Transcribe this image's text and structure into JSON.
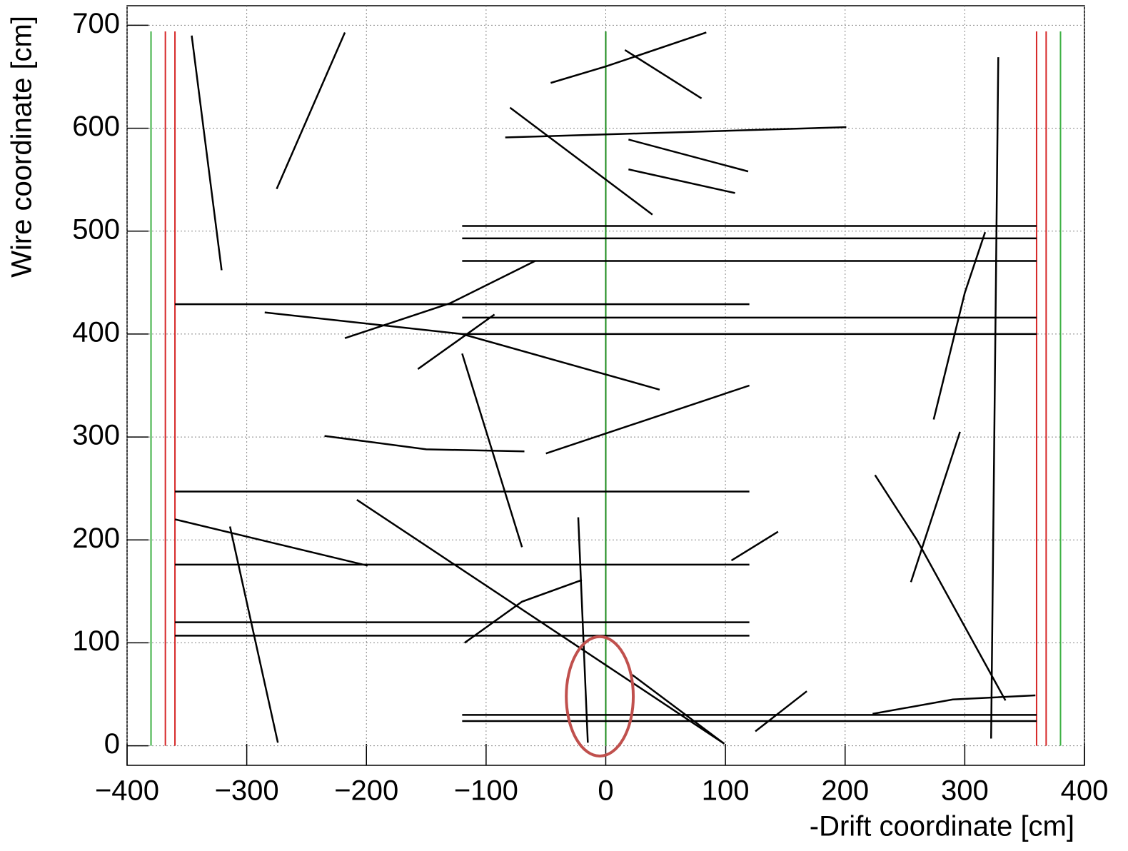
{
  "chart_data": {
    "type": "line",
    "xlabel": "-Drift coordinate [cm]",
    "ylabel": "Wire coordinate [cm]",
    "xlim": [
      -400,
      400
    ],
    "ylim": [
      -19,
      719
    ],
    "xticks": [
      {
        "value": -400,
        "label": "−400"
      },
      {
        "value": -300,
        "label": "−300"
      },
      {
        "value": -200,
        "label": "−200"
      },
      {
        "value": -100,
        "label": "−100"
      },
      0,
      100,
      200,
      300,
      400
    ],
    "yticks": [
      0,
      100,
      200,
      300,
      400,
      500,
      600,
      700
    ],
    "grid": true,
    "color": "#000000",
    "tracks": [
      {
        "x": [
          -346,
          -321
        ],
        "y": [
          690,
          462
        ]
      },
      {
        "x": [
          -275,
          -218
        ],
        "y": [
          541,
          693
        ]
      },
      {
        "x": [
          -360,
          -199
        ],
        "y": [
          220,
          175
        ]
      },
      {
        "x": [
          -314,
          -274
        ],
        "y": [
          213,
          3
        ]
      },
      {
        "x": [
          -208,
          99
        ],
        "y": [
          239,
          2
        ]
      },
      {
        "x": [
          -120,
          -70
        ],
        "y": [
          381,
          193
        ]
      },
      {
        "x": [
          -23,
          -15
        ],
        "y": [
          222,
          3
        ]
      },
      {
        "x": [
          -118,
          -70,
          -20
        ],
        "y": [
          100,
          140,
          161
        ]
      },
      {
        "x": [
          255,
          296
        ],
        "y": [
          159,
          305
        ]
      },
      {
        "x": [
          225,
          260,
          334
        ],
        "y": [
          263,
          200,
          44
        ]
      },
      {
        "x": [
          328,
          322
        ],
        "y": [
          669,
          7
        ]
      },
      {
        "x": [
          274,
          300,
          317
        ],
        "y": [
          317,
          440,
          499
        ]
      },
      {
        "x": [
          -80,
          39
        ],
        "y": [
          620,
          516
        ]
      },
      {
        "x": [
          -84,
          201
        ],
        "y": [
          591,
          601
        ]
      },
      {
        "x": [
          19,
          119
        ],
        "y": [
          589,
          558
        ]
      },
      {
        "x": [
          19,
          108
        ],
        "y": [
          560,
          537
        ]
      },
      {
        "x": [
          -46,
          0,
          84
        ],
        "y": [
          644,
          660,
          693
        ]
      },
      {
        "x": [
          16,
          80
        ],
        "y": [
          676,
          629
        ]
      },
      {
        "x": [
          -218,
          -130,
          -59
        ],
        "y": [
          396,
          430,
          471
        ]
      },
      {
        "x": [
          -285,
          -120,
          45
        ],
        "y": [
          421,
          400,
          346
        ]
      },
      {
        "x": [
          -157,
          -93
        ],
        "y": [
          366,
          419
        ]
      },
      {
        "x": [
          -50,
          120
        ],
        "y": [
          284,
          350
        ]
      },
      {
        "x": [
          -235,
          -150,
          -68
        ],
        "y": [
          301,
          288,
          286
        ]
      },
      {
        "x": [
          22,
          99
        ],
        "y": [
          69,
          2
        ]
      },
      {
        "x": [
          125,
          168
        ],
        "y": [
          14,
          53
        ]
      },
      {
        "x": [
          105,
          144
        ],
        "y": [
          180,
          208
        ]
      },
      {
        "x": [
          223,
          290,
          359
        ],
        "y": [
          31,
          45,
          49
        ]
      },
      {
        "x": [
          -360,
          120
        ],
        "y": [
          429,
          429
        ]
      },
      {
        "x": [
          -360,
          120
        ],
        "y": [
          247,
          247
        ]
      },
      {
        "x": [
          -360,
          120
        ],
        "y": [
          176,
          176
        ]
      },
      {
        "x": [
          -360,
          120
        ],
        "y": [
          120,
          120
        ]
      },
      {
        "x": [
          -360,
          120
        ],
        "y": [
          107,
          107
        ]
      },
      {
        "x": [
          -120,
          360
        ],
        "y": [
          505,
          505
        ]
      },
      {
        "x": [
          -120,
          360
        ],
        "y": [
          493,
          493
        ]
      },
      {
        "x": [
          -120,
          360
        ],
        "y": [
          471,
          471
        ]
      },
      {
        "x": [
          -120,
          360
        ],
        "y": [
          416,
          416
        ]
      },
      {
        "x": [
          -120,
          360
        ],
        "y": [
          400,
          400
        ]
      },
      {
        "x": [
          -120,
          360
        ],
        "y": [
          30,
          30
        ]
      },
      {
        "x": [
          -120,
          360
        ],
        "y": [
          24,
          24
        ]
      }
    ],
    "vertical_lines": [
      {
        "x": -380,
        "y": [
          0,
          694
        ],
        "color": "#3cb043"
      },
      {
        "x": -368,
        "y": [
          0,
          694
        ],
        "color": "#d62728"
      },
      {
        "x": -360,
        "y": [
          0,
          694
        ],
        "color": "#d62728"
      },
      {
        "x": 0,
        "y": [
          0,
          694
        ],
        "color": "#1a8a1a"
      },
      {
        "x": 360,
        "y": [
          0,
          694
        ],
        "color": "#d62728"
      },
      {
        "x": 368,
        "y": [
          0,
          694
        ],
        "color": "#d62728"
      },
      {
        "x": 380,
        "y": [
          0,
          694
        ],
        "color": "#3cb043"
      }
    ],
    "annotations": [
      {
        "shape": "ellipse",
        "x": -5,
        "y": 48,
        "rx": 28,
        "ry": 58,
        "color": "#c0504d"
      }
    ]
  }
}
